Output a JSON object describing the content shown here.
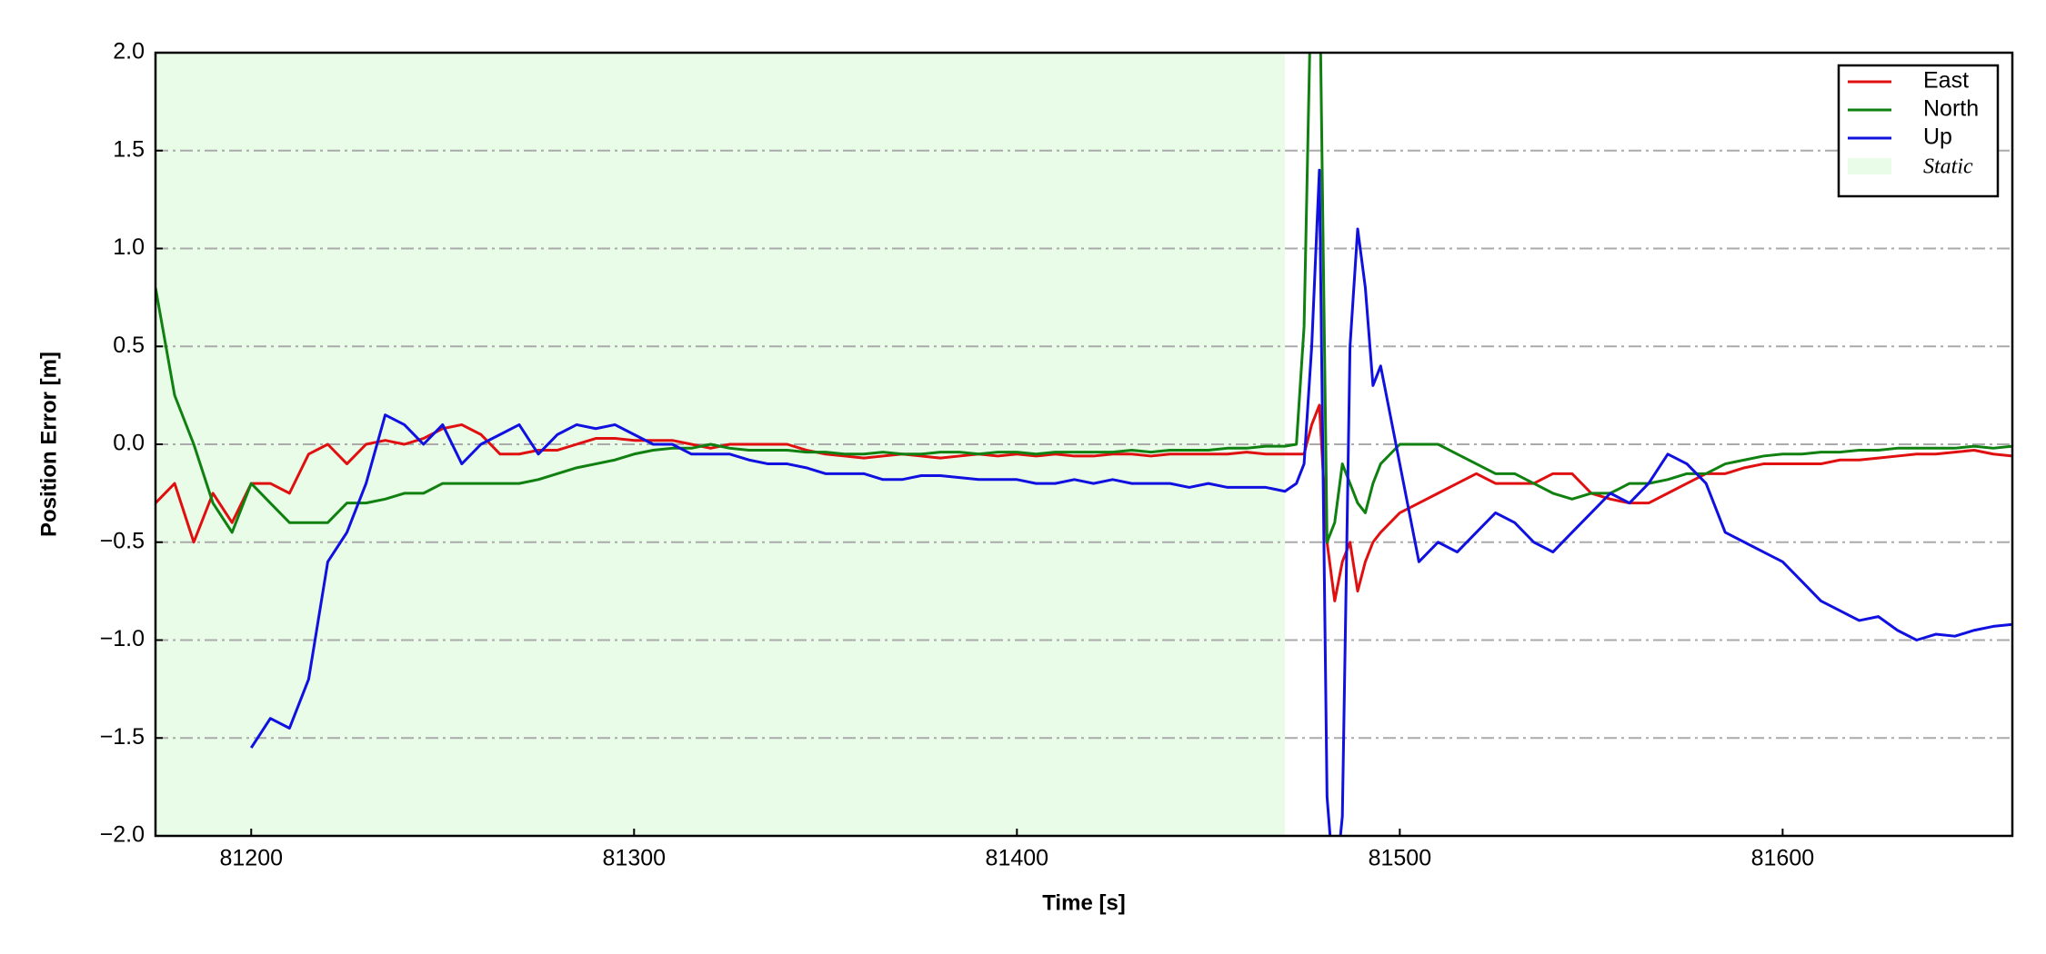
{
  "chart_data": {
    "type": "line",
    "xlabel": "Time [s]",
    "ylabel": "Position Error [m]",
    "xlim": [
      81175,
      81660
    ],
    "xticks": [
      81200,
      81300,
      81400,
      81500,
      81600
    ],
    "ylim": [
      -2,
      2
    ],
    "yticks": [
      {
        "value": -2,
        "label": "−2.0"
      },
      {
        "value": -1.5,
        "label": "−1.5"
      },
      {
        "value": -1,
        "label": "−1.0"
      },
      {
        "value": -0.5,
        "label": "−0.5"
      },
      {
        "value": 0,
        "label": "0.0"
      },
      0.5,
      {
        "value": 1,
        "label": "1.0"
      },
      1.5,
      {
        "value": 2,
        "label": "2.0"
      }
    ],
    "grid": true,
    "legend": "upper right",
    "shaded_region": {
      "name": "Static",
      "xmin": 81175,
      "xmax": 81470,
      "color": "#e8fce8"
    },
    "x": [
      81175,
      81180,
      81185,
      81190,
      81195,
      81200,
      81205,
      81210,
      81215,
      81220,
      81225,
      81230,
      81235,
      81240,
      81245,
      81250,
      81255,
      81260,
      81265,
      81270,
      81275,
      81280,
      81285,
      81290,
      81295,
      81300,
      81305,
      81310,
      81315,
      81320,
      81325,
      81330,
      81335,
      81340,
      81345,
      81350,
      81355,
      81360,
      81365,
      81370,
      81375,
      81380,
      81385,
      81390,
      81395,
      81400,
      81405,
      81410,
      81415,
      81420,
      81425,
      81430,
      81435,
      81440,
      81445,
      81450,
      81455,
      81460,
      81465,
      81470,
      81473,
      81475,
      81477,
      81479,
      81481,
      81483,
      81485,
      81487,
      81489,
      81491,
      81493,
      81495,
      81500,
      81505,
      81510,
      81515,
      81520,
      81525,
      81530,
      81535,
      81540,
      81545,
      81550,
      81555,
      81560,
      81565,
      81570,
      81575,
      81580,
      81585,
      81590,
      81595,
      81600,
      81605,
      81610,
      81615,
      81620,
      81625,
      81630,
      81635,
      81640,
      81645,
      81650,
      81655,
      81660
    ],
    "series": [
      {
        "name": "East",
        "color": "#e01010",
        "values": [
          -0.3,
          -0.2,
          -0.5,
          -0.25,
          -0.4,
          -0.2,
          -0.2,
          -0.25,
          -0.05,
          0.0,
          -0.1,
          0.0,
          0.02,
          0.0,
          0.03,
          0.08,
          0.1,
          0.05,
          -0.05,
          -0.05,
          -0.03,
          -0.03,
          0.0,
          0.03,
          0.03,
          0.02,
          0.02,
          0.02,
          0.0,
          -0.02,
          0.0,
          0.0,
          0.0,
          0.0,
          -0.03,
          -0.05,
          -0.06,
          -0.07,
          -0.06,
          -0.05,
          -0.06,
          -0.07,
          -0.06,
          -0.05,
          -0.06,
          -0.05,
          -0.06,
          -0.05,
          -0.06,
          -0.06,
          -0.05,
          -0.05,
          -0.06,
          -0.05,
          -0.05,
          -0.05,
          -0.05,
          -0.04,
          -0.05,
          -0.05,
          -0.05,
          -0.05,
          0.1,
          0.2,
          -0.5,
          -0.8,
          -0.6,
          -0.5,
          -0.75,
          -0.6,
          -0.5,
          -0.45,
          -0.35,
          -0.3,
          -0.25,
          -0.2,
          -0.15,
          -0.2,
          -0.2,
          -0.2,
          -0.15,
          -0.15,
          -0.25,
          -0.28,
          -0.3,
          -0.3,
          -0.25,
          -0.2,
          -0.15,
          -0.15,
          -0.12,
          -0.1,
          -0.1,
          -0.1,
          -0.1,
          -0.08,
          -0.08,
          -0.07,
          -0.06,
          -0.05,
          -0.05,
          -0.04,
          -0.03,
          -0.05,
          -0.06
        ]
      },
      {
        "name": "North",
        "color": "#108010",
        "values": [
          0.8,
          0.25,
          0.0,
          -0.3,
          -0.45,
          -0.2,
          -0.3,
          -0.4,
          -0.4,
          -0.4,
          -0.3,
          -0.3,
          -0.28,
          -0.25,
          -0.25,
          -0.2,
          -0.2,
          -0.2,
          -0.2,
          -0.2,
          -0.18,
          -0.15,
          -0.12,
          -0.1,
          -0.08,
          -0.05,
          -0.03,
          -0.02,
          -0.02,
          0.0,
          -0.02,
          -0.03,
          -0.03,
          -0.03,
          -0.04,
          -0.04,
          -0.05,
          -0.05,
          -0.04,
          -0.05,
          -0.05,
          -0.04,
          -0.04,
          -0.05,
          -0.04,
          -0.04,
          -0.05,
          -0.04,
          -0.04,
          -0.04,
          -0.04,
          -0.03,
          -0.04,
          -0.03,
          -0.03,
          -0.03,
          -0.02,
          -0.02,
          -0.01,
          -0.01,
          0.0,
          0.6,
          2.5,
          2.5,
          -0.5,
          -0.4,
          -0.1,
          -0.2,
          -0.3,
          -0.35,
          -0.2,
          -0.1,
          0.0,
          0.0,
          0.0,
          -0.05,
          -0.1,
          -0.15,
          -0.15,
          -0.2,
          -0.25,
          -0.28,
          -0.25,
          -0.25,
          -0.2,
          -0.2,
          -0.18,
          -0.15,
          -0.15,
          -0.1,
          -0.08,
          -0.06,
          -0.05,
          -0.05,
          -0.04,
          -0.04,
          -0.03,
          -0.03,
          -0.02,
          -0.02,
          -0.02,
          -0.02,
          -0.01,
          -0.02,
          -0.01
        ]
      },
      {
        "name": "Up",
        "color": "#1010e0",
        "values": [
          null,
          null,
          null,
          null,
          null,
          -1.55,
          -1.4,
          -1.45,
          -1.2,
          -0.6,
          -0.45,
          -0.2,
          0.15,
          0.1,
          0.0,
          0.1,
          -0.1,
          0.0,
          0.05,
          0.1,
          -0.05,
          0.05,
          0.1,
          0.08,
          0.1,
          0.05,
          0.0,
          0.0,
          -0.05,
          -0.05,
          -0.05,
          -0.08,
          -0.1,
          -0.1,
          -0.12,
          -0.15,
          -0.15,
          -0.15,
          -0.18,
          -0.18,
          -0.16,
          -0.16,
          -0.17,
          -0.18,
          -0.18,
          -0.18,
          -0.2,
          -0.2,
          -0.18,
          -0.2,
          -0.18,
          -0.2,
          -0.2,
          -0.2,
          -0.22,
          -0.2,
          -0.22,
          -0.22,
          -0.22,
          -0.24,
          -0.2,
          -0.1,
          0.5,
          1.4,
          -1.8,
          -2.3,
          -1.9,
          0.5,
          1.1,
          0.8,
          0.3,
          0.4,
          -0.1,
          -0.6,
          -0.5,
          -0.55,
          -0.45,
          -0.35,
          -0.4,
          -0.5,
          -0.55,
          -0.45,
          -0.35,
          -0.25,
          -0.3,
          -0.2,
          -0.05,
          -0.1,
          -0.2,
          -0.45,
          -0.5,
          -0.55,
          -0.6,
          -0.7,
          -0.8,
          -0.85,
          -0.9,
          -0.88,
          -0.95,
          -1.0,
          -0.97,
          -0.98,
          -0.95,
          -0.93,
          -0.92
        ]
      }
    ]
  }
}
